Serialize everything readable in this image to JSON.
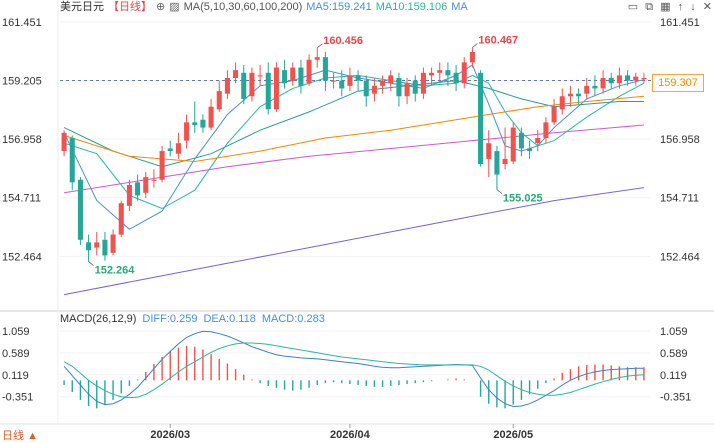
{
  "header": {
    "symbol": "美元日元",
    "period": "【日线】",
    "ma_label": "MA(5,10,30,60,100,200)",
    "ma5": "MA5:159.241",
    "ma10": "MA10:159.106",
    "ma_more": "MA",
    "right_icons": [
      "minimize-icon",
      "restore-icon",
      "grid-icon",
      "up-arrow-icon",
      "down-arrow-icon",
      "close-icon"
    ]
  },
  "current_price": "159.307",
  "macd": {
    "title": "MACD(26,12,9)",
    "diff": "DIFF:0.259",
    "dea": "DEA:0.118",
    "macd": "MACD:0.283"
  },
  "watermark": "日线",
  "colors": {
    "up": "#ef5350",
    "down": "#26a69a",
    "ma5": "#4a8fd4",
    "ma10": "#2db7a3",
    "ma30": "#2c9aa0",
    "ma60": "#f28a00",
    "ma100": "#cc5bd0",
    "ma200": "#7b61d9"
  },
  "chart_data": {
    "type": "candlestick",
    "y_ticks": [
      "161.451",
      "159.205",
      "156.958",
      "154.711",
      "152.464"
    ],
    "ylim": [
      150.6,
      161.6
    ],
    "x_labels": [
      {
        "label": "2026/03",
        "index": 13
      },
      {
        "label": "2026/04",
        "index": 35
      },
      {
        "label": "2026/05",
        "index": 55
      }
    ],
    "annotations": [
      {
        "text": "160.456",
        "index": 31,
        "value": 160.456,
        "kind": "high"
      },
      {
        "text": "160.467",
        "index": 50,
        "value": 160.467,
        "kind": "high"
      },
      {
        "text": "152.264",
        "index": 3,
        "value": 152.264,
        "kind": "low"
      },
      {
        "text": "155.025",
        "index": 53,
        "value": 155.025,
        "kind": "low"
      }
    ],
    "candles": [
      [
        156.5,
        157.2,
        157.3,
        156.3
      ],
      [
        157.0,
        155.3,
        157.1,
        155.0
      ],
      [
        155.4,
        153.1,
        155.5,
        152.9
      ],
      [
        153.0,
        152.7,
        153.3,
        152.26
      ],
      [
        152.8,
        153.0,
        153.4,
        152.5
      ],
      [
        153.1,
        152.5,
        153.4,
        152.3
      ],
      [
        152.6,
        153.3,
        153.5,
        152.5
      ],
      [
        153.3,
        154.5,
        154.6,
        153.2
      ],
      [
        154.4,
        155.2,
        155.4,
        154.2
      ],
      [
        155.3,
        154.8,
        155.6,
        154.6
      ],
      [
        154.9,
        155.5,
        155.7,
        154.7
      ],
      [
        155.4,
        155.4,
        155.8,
        155.1
      ],
      [
        155.4,
        156.5,
        156.7,
        155.3
      ],
      [
        156.6,
        156.5,
        156.9,
        156.3
      ],
      [
        156.4,
        156.8,
        157.2,
        156.2
      ],
      [
        156.9,
        157.6,
        157.9,
        156.6
      ],
      [
        157.6,
        157.5,
        158.4,
        157.2
      ],
      [
        157.7,
        157.4,
        157.9,
        157.2
      ],
      [
        157.4,
        158.2,
        158.5,
        157.3
      ],
      [
        158.1,
        158.8,
        159.2,
        158.0
      ],
      [
        158.7,
        159.3,
        159.6,
        158.5
      ],
      [
        159.3,
        159.6,
        159.9,
        159.1
      ],
      [
        159.5,
        158.5,
        159.8,
        158.3
      ],
      [
        158.6,
        159.5,
        159.7,
        158.4
      ],
      [
        159.4,
        159.4,
        159.8,
        159.0
      ],
      [
        159.5,
        158.1,
        159.9,
        157.9
      ],
      [
        158.1,
        159.7,
        159.9,
        158.0
      ],
      [
        159.6,
        159.1,
        160.0,
        158.9
      ],
      [
        159.2,
        159.7,
        159.9,
        159.0
      ],
      [
        159.7,
        159.0,
        160.0,
        158.7
      ],
      [
        159.1,
        160.0,
        160.2,
        159.0
      ],
      [
        160.0,
        160.1,
        160.456,
        159.7
      ],
      [
        160.1,
        159.2,
        160.3,
        158.8
      ],
      [
        159.2,
        159.2,
        159.5,
        158.9
      ],
      [
        159.2,
        158.9,
        159.6,
        158.6
      ],
      [
        159.0,
        159.4,
        159.7,
        158.8
      ],
      [
        159.4,
        159.2,
        159.6,
        158.8
      ],
      [
        159.2,
        158.6,
        159.4,
        158.2
      ],
      [
        158.7,
        159.0,
        159.3,
        158.4
      ],
      [
        159.0,
        159.2,
        159.4,
        158.7
      ],
      [
        159.1,
        159.4,
        159.6,
        158.8
      ],
      [
        159.3,
        158.6,
        159.5,
        158.2
      ],
      [
        158.6,
        159.1,
        159.3,
        158.3
      ],
      [
        159.2,
        158.7,
        159.4,
        158.4
      ],
      [
        158.7,
        159.5,
        159.7,
        158.5
      ],
      [
        159.4,
        159.5,
        159.7,
        159.0
      ],
      [
        159.5,
        159.6,
        159.9,
        159.1
      ],
      [
        159.6,
        159.4,
        159.9,
        159.0
      ],
      [
        159.5,
        159.1,
        159.8,
        158.8
      ],
      [
        159.1,
        159.9,
        160.1,
        158.9
      ],
      [
        159.9,
        160.3,
        160.467,
        159.7
      ],
      [
        159.5,
        156.0,
        159.6,
        155.9
      ],
      [
        156.2,
        156.8,
        157.3,
        155.5
      ],
      [
        156.5,
        155.6,
        156.7,
        155.025
      ],
      [
        156.0,
        156.2,
        157.4,
        155.8
      ],
      [
        156.1,
        157.4,
        157.6,
        156.0
      ],
      [
        157.2,
        156.6,
        157.4,
        156.3
      ],
      [
        156.6,
        156.5,
        156.9,
        156.2
      ],
      [
        156.8,
        157.0,
        157.3,
        156.5
      ],
      [
        157.0,
        157.6,
        157.8,
        156.8
      ],
      [
        157.6,
        158.2,
        158.5,
        157.5
      ],
      [
        158.1,
        158.6,
        158.9,
        157.9
      ],
      [
        158.6,
        158.7,
        159.0,
        158.2
      ],
      [
        158.7,
        158.6,
        158.9,
        158.3
      ],
      [
        158.7,
        159.0,
        159.3,
        158.5
      ],
      [
        159.0,
        158.9,
        159.4,
        158.6
      ],
      [
        158.9,
        159.3,
        159.6,
        158.7
      ],
      [
        159.3,
        159.1,
        159.5,
        158.9
      ],
      [
        159.1,
        159.4,
        159.7,
        158.9
      ],
      [
        159.4,
        159.2,
        159.6,
        159.0
      ],
      [
        159.2,
        159.35,
        159.5,
        159.0
      ],
      [
        159.3,
        159.3,
        159.5,
        159.1
      ]
    ],
    "ma_lines": [
      {
        "name": "MA5",
        "color": "#4a8fd4",
        "values": [
          [
            0,
            157.2
          ],
          [
            4,
            154.6
          ],
          [
            8,
            153.5
          ],
          [
            12,
            154.2
          ],
          [
            16,
            156.2
          ],
          [
            20,
            157.9
          ],
          [
            24,
            159.0
          ],
          [
            28,
            159.2
          ],
          [
            32,
            159.6
          ],
          [
            36,
            159.3
          ],
          [
            40,
            159.1
          ],
          [
            44,
            158.9
          ],
          [
            48,
            159.4
          ],
          [
            50,
            159.8
          ],
          [
            52,
            158.3
          ],
          [
            54,
            156.7
          ],
          [
            56,
            156.5
          ],
          [
            58,
            156.7
          ],
          [
            60,
            157.4
          ],
          [
            64,
            158.5
          ],
          [
            68,
            159.0
          ],
          [
            71,
            159.24
          ]
        ]
      },
      {
        "name": "MA10",
        "color": "#2db7a3",
        "values": [
          [
            0,
            156.8
          ],
          [
            4,
            156.4
          ],
          [
            8,
            154.8
          ],
          [
            12,
            154.3
          ],
          [
            16,
            155.0
          ],
          [
            20,
            156.8
          ],
          [
            24,
            158.2
          ],
          [
            28,
            158.9
          ],
          [
            32,
            159.3
          ],
          [
            36,
            159.4
          ],
          [
            40,
            159.2
          ],
          [
            44,
            159.0
          ],
          [
            48,
            159.1
          ],
          [
            50,
            159.4
          ],
          [
            52,
            159.1
          ],
          [
            54,
            158.0
          ],
          [
            56,
            157.2
          ],
          [
            58,
            156.7
          ],
          [
            60,
            156.9
          ],
          [
            64,
            157.8
          ],
          [
            68,
            158.6
          ],
          [
            71,
            159.1
          ]
        ]
      },
      {
        "name": "MA30",
        "color": "#2c9aa0",
        "values": [
          [
            0,
            157.4
          ],
          [
            6,
            156.5
          ],
          [
            12,
            155.9
          ],
          [
            18,
            156.4
          ],
          [
            24,
            157.3
          ],
          [
            30,
            158.0
          ],
          [
            36,
            158.8
          ],
          [
            42,
            159.0
          ],
          [
            48,
            159.2
          ],
          [
            52,
            158.9
          ],
          [
            56,
            158.5
          ],
          [
            60,
            158.2
          ],
          [
            64,
            158.3
          ],
          [
            68,
            158.4
          ],
          [
            71,
            158.4
          ]
        ]
      },
      {
        "name": "MA60",
        "color": "#f28a00",
        "values": [
          [
            0,
            157.1
          ],
          [
            8,
            156.3
          ],
          [
            16,
            156.1
          ],
          [
            24,
            156.5
          ],
          [
            32,
            157.0
          ],
          [
            40,
            157.3
          ],
          [
            46,
            157.6
          ],
          [
            52,
            157.9
          ],
          [
            58,
            158.2
          ],
          [
            64,
            158.4
          ],
          [
            71,
            158.6
          ]
        ]
      },
      {
        "name": "MA100",
        "color": "#cc5bd0",
        "values": [
          [
            0,
            154.9
          ],
          [
            10,
            155.4
          ],
          [
            20,
            155.9
          ],
          [
            30,
            156.3
          ],
          [
            40,
            156.6
          ],
          [
            50,
            156.9
          ],
          [
            60,
            157.2
          ],
          [
            71,
            157.5
          ]
        ]
      },
      {
        "name": "MA200",
        "color": "#7b61d9",
        "values": [
          [
            0,
            151.0
          ],
          [
            10,
            151.6
          ],
          [
            20,
            152.2
          ],
          [
            30,
            152.8
          ],
          [
            40,
            153.4
          ],
          [
            50,
            154.0
          ],
          [
            60,
            154.6
          ],
          [
            71,
            155.1
          ]
        ]
      }
    ],
    "macd_panel": {
      "y_ticks": [
        "1.059",
        "0.589",
        "0.119",
        "-0.351"
      ],
      "ylim": [
        -0.85,
        1.25
      ],
      "hist": [
        -0.1,
        -0.25,
        -0.42,
        -0.55,
        -0.6,
        -0.52,
        -0.42,
        -0.28,
        -0.12,
        0.02,
        0.18,
        0.35,
        0.5,
        0.62,
        0.7,
        0.74,
        0.72,
        0.66,
        0.56,
        0.46,
        0.36,
        0.24,
        0.12,
        0.02,
        -0.06,
        -0.12,
        -0.16,
        -0.2,
        -0.22,
        -0.2,
        -0.16,
        -0.1,
        -0.06,
        -0.04,
        -0.06,
        -0.08,
        -0.1,
        -0.12,
        -0.14,
        -0.14,
        -0.12,
        -0.1,
        -0.08,
        -0.06,
        -0.04,
        -0.02,
        0.0,
        0.02,
        0.04,
        0.02,
        0.0,
        -0.35,
        -0.5,
        -0.58,
        -0.6,
        -0.52,
        -0.42,
        -0.3,
        -0.18,
        -0.06,
        0.04,
        0.16,
        0.24,
        0.3,
        0.33,
        0.34,
        0.34,
        0.32,
        0.3,
        0.28,
        0.28,
        0.28
      ],
      "diff": [
        0.3,
        0.1,
        -0.1,
        -0.3,
        -0.45,
        -0.52,
        -0.5,
        -0.42,
        -0.3,
        -0.15,
        0.05,
        0.25,
        0.45,
        0.62,
        0.78,
        0.92,
        1.0,
        1.05,
        1.04,
        1.0,
        0.95,
        0.88,
        0.8,
        0.72,
        0.66,
        0.6,
        0.55,
        0.52,
        0.5,
        0.48,
        0.47,
        0.46,
        0.44,
        0.42,
        0.4,
        0.38,
        0.36,
        0.33,
        0.3,
        0.28,
        0.27,
        0.27,
        0.28,
        0.29,
        0.3,
        0.31,
        0.32,
        0.33,
        0.34,
        0.33,
        0.32,
        0.05,
        -0.2,
        -0.38,
        -0.5,
        -0.56,
        -0.55,
        -0.5,
        -0.42,
        -0.32,
        -0.22,
        -0.1,
        0.0,
        0.08,
        0.14,
        0.18,
        0.21,
        0.23,
        0.24,
        0.25,
        0.26,
        0.26
      ],
      "dea": [
        0.4,
        0.3,
        0.15,
        0.0,
        -0.12,
        -0.22,
        -0.3,
        -0.35,
        -0.37,
        -0.36,
        -0.3,
        -0.2,
        -0.08,
        0.05,
        0.18,
        0.3,
        0.4,
        0.5,
        0.6,
        0.68,
        0.74,
        0.78,
        0.8,
        0.8,
        0.79,
        0.77,
        0.74,
        0.71,
        0.68,
        0.65,
        0.62,
        0.59,
        0.56,
        0.53,
        0.5,
        0.48,
        0.46,
        0.44,
        0.42,
        0.4,
        0.38,
        0.36,
        0.35,
        0.34,
        0.33,
        0.33,
        0.33,
        0.33,
        0.33,
        0.33,
        0.33,
        0.3,
        0.22,
        0.1,
        -0.02,
        -0.12,
        -0.2,
        -0.26,
        -0.3,
        -0.32,
        -0.32,
        -0.3,
        -0.26,
        -0.2,
        -0.14,
        -0.08,
        -0.03,
        0.02,
        0.06,
        0.09,
        0.11,
        0.12
      ]
    }
  }
}
